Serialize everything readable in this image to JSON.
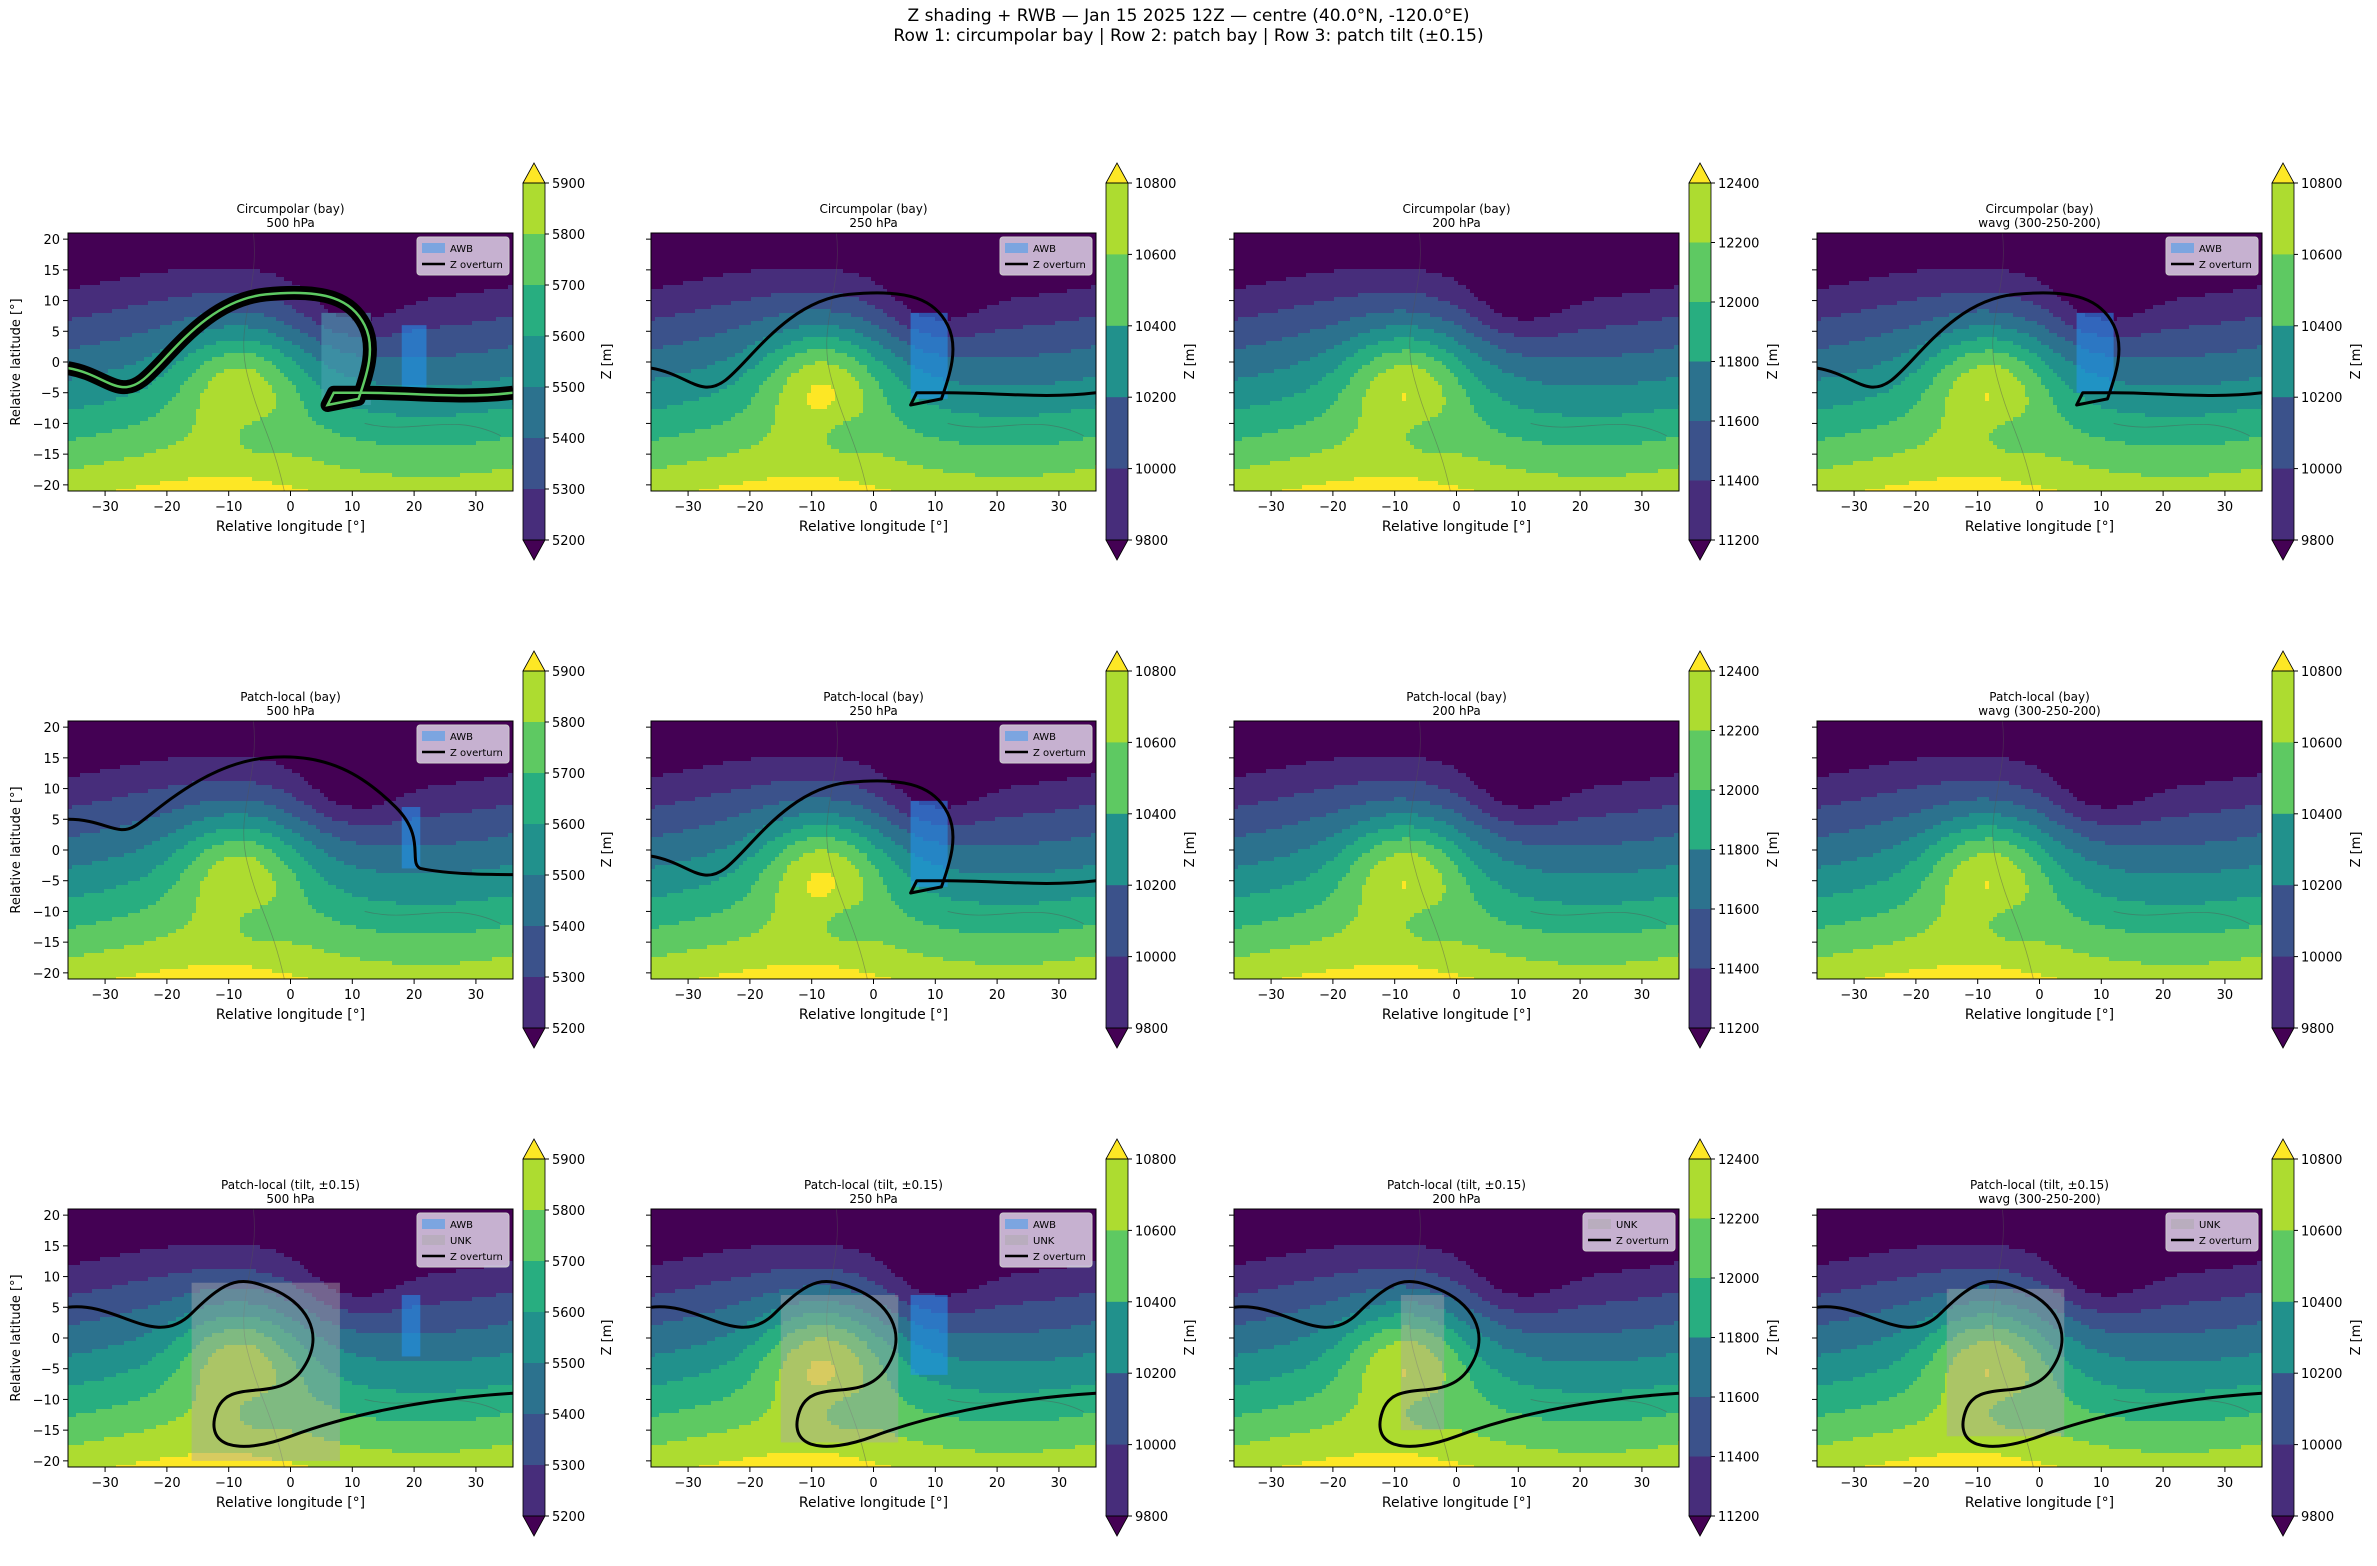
{
  "figure": {
    "title_line1": "Z shading + RWB — Jan 15 2025 12Z — centre (40.0°N, -120.0°E)",
    "title_line2": "Row 1: circumpolar bay  |  Row 2: patch bay  |  Row 3: patch tilt (±0.15)"
  },
  "colors": {
    "awb_fill": "#2196f3",
    "unk_fill": "#a9a9a9",
    "overturn_line": "#000000",
    "legend_bg": "#ddd0e6",
    "viridis": [
      "#440154",
      "#472d7b",
      "#3b528b",
      "#2c728e",
      "#21918c",
      "#28ae80",
      "#5ec962",
      "#addc30",
      "#fde725"
    ]
  },
  "chart_data": [
    {
      "type": "heatmap",
      "title": "Circumpolar (bay)",
      "subtitle": "500 hPa",
      "xlabel": "Relative longitude [°]",
      "ylabel": "Relative latitude [°]",
      "xlim": [
        -36,
        36
      ],
      "ylim": [
        -21,
        21
      ],
      "xticks": [
        "−30",
        "−20",
        "−10",
        "0",
        "10",
        "20",
        "30"
      ],
      "yticks": [
        "20",
        "15",
        "10",
        "5",
        "0",
        "−5",
        "−10",
        "−15",
        "−20"
      ],
      "colorbar": {
        "label": "Z [m]",
        "ticks": [
          "5900",
          "5800",
          "5700",
          "5600",
          "5500",
          "5400",
          "5300",
          "5200"
        ],
        "range": [
          5200,
          5900
        ],
        "extend": "both"
      },
      "legend": [
        "AWB",
        "Z overturn"
      ],
      "z_min": 5200,
      "z_max": 5900,
      "trough_amp": 0.85,
      "thick_contour": true,
      "awb_region": [
        18,
        22,
        -5,
        6
      ],
      "shade_region": [
        5,
        13,
        -7,
        8
      ],
      "unk_region": null,
      "overturn": "bay"
    },
    {
      "type": "heatmap",
      "title": "Circumpolar (bay)",
      "subtitle": "250 hPa",
      "xlabel": "Relative longitude [°]",
      "ylabel": "",
      "xlim": [
        -36,
        36
      ],
      "ylim": [
        -21,
        21
      ],
      "xticks": [
        "−30",
        "−20",
        "−10",
        "0",
        "10",
        "20",
        "30"
      ],
      "yticks": [],
      "colorbar": {
        "label": "Z [m]",
        "ticks": [
          "10800",
          "10600",
          "10400",
          "10200",
          "10000",
          "9800"
        ],
        "range": [
          9800,
          10800
        ],
        "extend": "both"
      },
      "legend": [
        "AWB",
        "Z overturn"
      ],
      "z_min": 9800,
      "z_max": 10800,
      "trough_amp": 0.95,
      "thick_contour": false,
      "awb_region": [
        6,
        12,
        -6,
        8
      ],
      "shade_region": null,
      "unk_region": null,
      "overturn": "bay"
    },
    {
      "type": "heatmap",
      "title": "Circumpolar (bay)",
      "subtitle": "200 hPa",
      "xlabel": "Relative longitude [°]",
      "ylabel": "",
      "xlim": [
        -36,
        36
      ],
      "ylim": [
        -21,
        21
      ],
      "xticks": [
        "−30",
        "−20",
        "−10",
        "0",
        "10",
        "20",
        "30"
      ],
      "yticks": [],
      "colorbar": {
        "label": "Z [m]",
        "ticks": [
          "12400",
          "12200",
          "12000",
          "11800",
          "11600",
          "11400",
          "11200"
        ],
        "range": [
          11200,
          12400
        ],
        "extend": "both"
      },
      "legend": [],
      "z_min": 11200,
      "z_max": 12400,
      "trough_amp": 0.9,
      "thick_contour": false,
      "awb_region": null,
      "shade_region": null,
      "unk_region": null,
      "overturn": "none"
    },
    {
      "type": "heatmap",
      "title": "Circumpolar (bay)",
      "subtitle": "wavg (300-250-200)",
      "xlabel": "Relative longitude [°]",
      "ylabel": "",
      "xlim": [
        -36,
        36
      ],
      "ylim": [
        -21,
        21
      ],
      "xticks": [
        "−30",
        "−20",
        "−10",
        "0",
        "10",
        "20",
        "30"
      ],
      "yticks": [],
      "colorbar": {
        "label": "Z [m]",
        "ticks": [
          "10800",
          "10600",
          "10400",
          "10200",
          "10000",
          "9800"
        ],
        "range": [
          9800,
          10800
        ],
        "extend": "both"
      },
      "legend": [
        "AWB",
        "Z overturn"
      ],
      "z_min": 9800,
      "z_max": 10800,
      "trough_amp": 0.9,
      "thick_contour": false,
      "awb_region": [
        6,
        12,
        -5,
        8
      ],
      "shade_region": null,
      "unk_region": null,
      "overturn": "bay"
    },
    {
      "type": "heatmap",
      "title": "Patch-local (bay)",
      "subtitle": "500 hPa",
      "xlabel": "Relative longitude [°]",
      "ylabel": "Relative latitude [°]",
      "xlim": [
        -36,
        36
      ],
      "ylim": [
        -21,
        21
      ],
      "xticks": [
        "−30",
        "−20",
        "−10",
        "0",
        "10",
        "20",
        "30"
      ],
      "yticks": [
        "20",
        "15",
        "10",
        "5",
        "0",
        "−5",
        "−10",
        "−15",
        "−20"
      ],
      "colorbar": {
        "label": "Z [m]",
        "ticks": [
          "5900",
          "5800",
          "5700",
          "5600",
          "5500",
          "5400",
          "5300",
          "5200"
        ],
        "range": [
          5200,
          5900
        ],
        "extend": "both"
      },
      "legend": [
        "AWB",
        "Z overturn"
      ],
      "z_min": 5200,
      "z_max": 5900,
      "trough_amp": 0.85,
      "thick_contour": false,
      "awb_region": [
        18,
        21,
        -3,
        7
      ],
      "shade_region": null,
      "unk_region": null,
      "overturn": "single"
    },
    {
      "type": "heatmap",
      "title": "Patch-local (bay)",
      "subtitle": "250 hPa",
      "xlabel": "Relative longitude [°]",
      "ylabel": "",
      "xlim": [
        -36,
        36
      ],
      "ylim": [
        -21,
        21
      ],
      "xticks": [
        "−30",
        "−20",
        "−10",
        "0",
        "10",
        "20",
        "30"
      ],
      "yticks": [],
      "colorbar": {
        "label": "Z [m]",
        "ticks": [
          "10800",
          "10600",
          "10400",
          "10200",
          "10000",
          "9800"
        ],
        "range": [
          9800,
          10800
        ],
        "extend": "both"
      },
      "legend": [
        "AWB",
        "Z overturn"
      ],
      "z_min": 9800,
      "z_max": 10800,
      "trough_amp": 0.95,
      "thick_contour": false,
      "awb_region": [
        6,
        12,
        -6,
        8
      ],
      "shade_region": null,
      "unk_region": null,
      "overturn": "bay"
    },
    {
      "type": "heatmap",
      "title": "Patch-local (bay)",
      "subtitle": "200 hPa",
      "xlabel": "Relative longitude [°]",
      "ylabel": "",
      "xlim": [
        -36,
        36
      ],
      "ylim": [
        -21,
        21
      ],
      "xticks": [
        "−30",
        "−20",
        "−10",
        "0",
        "10",
        "20",
        "30"
      ],
      "yticks": [],
      "colorbar": {
        "label": "Z [m]",
        "ticks": [
          "12400",
          "12200",
          "12000",
          "11800",
          "11600",
          "11400",
          "11200"
        ],
        "range": [
          11200,
          12400
        ],
        "extend": "both"
      },
      "legend": [],
      "z_min": 11200,
      "z_max": 12400,
      "trough_amp": 0.9,
      "thick_contour": false,
      "awb_region": null,
      "shade_region": null,
      "unk_region": null,
      "overturn": "none"
    },
    {
      "type": "heatmap",
      "title": "Patch-local (bay)",
      "subtitle": "wavg (300-250-200)",
      "xlabel": "Relative longitude [°]",
      "ylabel": "",
      "xlim": [
        -36,
        36
      ],
      "ylim": [
        -21,
        21
      ],
      "xticks": [
        "−30",
        "−20",
        "−10",
        "0",
        "10",
        "20",
        "30"
      ],
      "yticks": [],
      "colorbar": {
        "label": "Z [m]",
        "ticks": [
          "10800",
          "10600",
          "10400",
          "10200",
          "10000",
          "9800"
        ],
        "range": [
          9800,
          10800
        ],
        "extend": "both"
      },
      "legend": [],
      "z_min": 9800,
      "z_max": 10800,
      "trough_amp": 0.9,
      "thick_contour": false,
      "awb_region": null,
      "shade_region": null,
      "unk_region": null,
      "overturn": "none"
    },
    {
      "type": "heatmap",
      "title": "Patch-local (tilt, ±0.15)",
      "subtitle": "500 hPa",
      "xlabel": "Relative longitude [°]",
      "ylabel": "Relative latitude [°]",
      "xlim": [
        -36,
        36
      ],
      "ylim": [
        -21,
        21
      ],
      "xticks": [
        "−30",
        "−20",
        "−10",
        "0",
        "10",
        "20",
        "30"
      ],
      "yticks": [
        "20",
        "15",
        "10",
        "5",
        "0",
        "−5",
        "−10",
        "−15",
        "−20"
      ],
      "colorbar": {
        "label": "Z [m]",
        "ticks": [
          "5900",
          "5800",
          "5700",
          "5600",
          "5500",
          "5400",
          "5300",
          "5200"
        ],
        "range": [
          5200,
          5900
        ],
        "extend": "both"
      },
      "legend": [
        "AWB",
        "UNK",
        "Z overturn"
      ],
      "z_min": 5200,
      "z_max": 5900,
      "trough_amp": 0.85,
      "thick_contour": false,
      "awb_region": [
        18,
        21,
        -3,
        7
      ],
      "shade_region": null,
      "unk_region": [
        -16,
        8,
        -20,
        9
      ],
      "overturn": "tilt"
    },
    {
      "type": "heatmap",
      "title": "Patch-local (tilt, ±0.15)",
      "subtitle": "250 hPa",
      "xlabel": "Relative longitude [°]",
      "ylabel": "",
      "xlim": [
        -36,
        36
      ],
      "ylim": [
        -21,
        21
      ],
      "xticks": [
        "−30",
        "−20",
        "−10",
        "0",
        "10",
        "20",
        "30"
      ],
      "yticks": [],
      "colorbar": {
        "label": "Z [m]",
        "ticks": [
          "10800",
          "10600",
          "10400",
          "10200",
          "10000",
          "9800"
        ],
        "range": [
          9800,
          10800
        ],
        "extend": "both"
      },
      "legend": [
        "AWB",
        "UNK",
        "Z overturn"
      ],
      "z_min": 9800,
      "z_max": 10800,
      "trough_amp": 0.95,
      "thick_contour": false,
      "awb_region": [
        6,
        12,
        -6,
        7
      ],
      "shade_region": null,
      "unk_region": [
        -15,
        4,
        -17,
        7
      ],
      "overturn": "tilt"
    },
    {
      "type": "heatmap",
      "title": "Patch-local (tilt, ±0.15)",
      "subtitle": "200 hPa",
      "xlabel": "Relative longitude [°]",
      "ylabel": "",
      "xlim": [
        -36,
        36
      ],
      "ylim": [
        -21,
        21
      ],
      "xticks": [
        "−30",
        "−20",
        "−10",
        "0",
        "10",
        "20",
        "30"
      ],
      "yticks": [],
      "colorbar": {
        "label": "Z [m]",
        "ticks": [
          "12400",
          "12200",
          "12000",
          "11800",
          "11600",
          "11400",
          "11200"
        ],
        "range": [
          11200,
          12400
        ],
        "extend": "both"
      },
      "legend": [
        "UNK",
        "Z overturn"
      ],
      "z_min": 11200,
      "z_max": 12400,
      "trough_amp": 0.9,
      "thick_contour": false,
      "awb_region": null,
      "shade_region": null,
      "unk_region": [
        -9,
        -2,
        -15,
        7
      ],
      "overturn": "tilt"
    },
    {
      "type": "heatmap",
      "title": "Patch-local (tilt, ±0.15)",
      "subtitle": "wavg (300-250-200)",
      "xlabel": "Relative longitude [°]",
      "ylabel": "",
      "xlim": [
        -36,
        36
      ],
      "ylim": [
        -21,
        21
      ],
      "xticks": [
        "−30",
        "−20",
        "−10",
        "0",
        "10",
        "20",
        "30"
      ],
      "yticks": [],
      "colorbar": {
        "label": "Z [m]",
        "ticks": [
          "10800",
          "10600",
          "10400",
          "10200",
          "10000",
          "9800"
        ],
        "range": [
          9800,
          10800
        ],
        "extend": "both"
      },
      "legend": [
        "UNK",
        "Z overturn"
      ],
      "z_min": 9800,
      "z_max": 10800,
      "trough_amp": 0.9,
      "thick_contour": false,
      "awb_region": null,
      "shade_region": null,
      "unk_region": [
        -15,
        4,
        -16,
        8
      ],
      "overturn": "tilt"
    }
  ]
}
